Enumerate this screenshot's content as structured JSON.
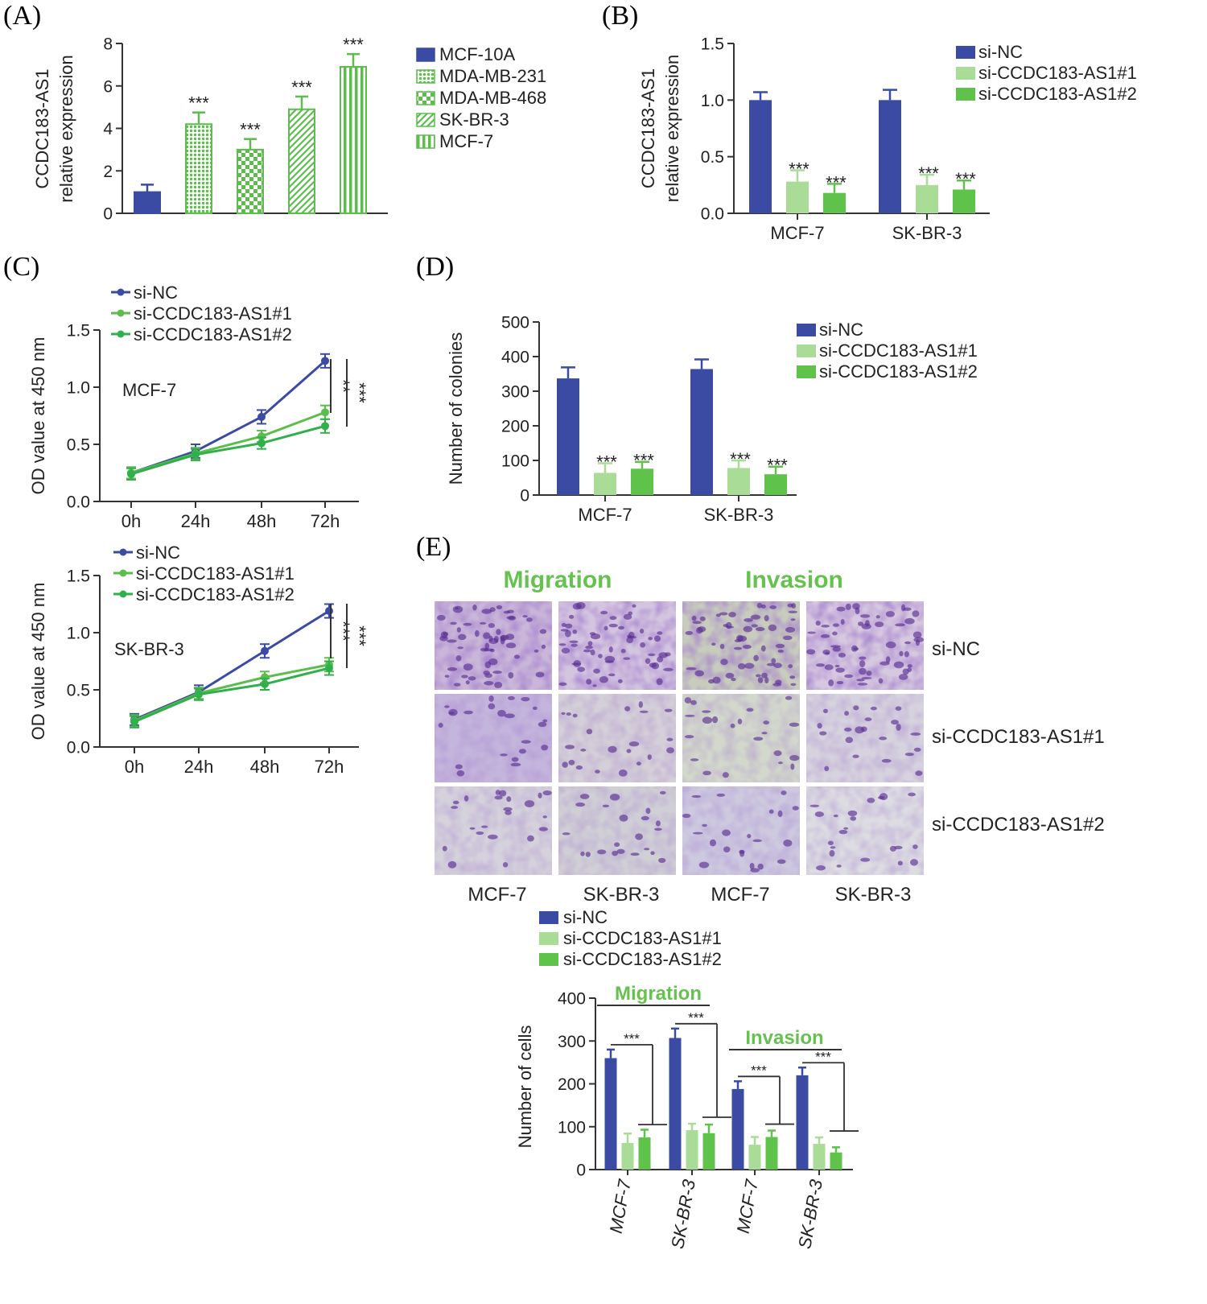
{
  "colors": {
    "blue": "#3b4ba3",
    "green": "#5bbd4a",
    "lightgreen": "#a9dc96",
    "midgreen": "#5fc24b",
    "darkgreen": "#30b04a",
    "title_green": "#65c24f"
  },
  "panel_labels": [
    "(A)",
    "(B)",
    "(C)",
    "(D)",
    "(E)"
  ],
  "chart_data": [
    {
      "id": "A",
      "type": "bar",
      "ylabel": [
        "CCDC183-AS1",
        "relative expression"
      ],
      "ylim": [
        0,
        8
      ],
      "yticks": [
        "0",
        "2",
        "4",
        "6",
        "8"
      ],
      "categories": [
        "MCF-10A",
        "MDA-MB-231",
        "MDA-MB-468",
        "SK-BR-3",
        "MCF-7"
      ],
      "values": [
        1.0,
        4.2,
        3.0,
        4.9,
        6.9
      ],
      "errors": [
        0.35,
        0.55,
        0.5,
        0.6,
        0.6
      ],
      "significance": [
        "",
        "***",
        "***",
        "***",
        "***"
      ],
      "legend": [
        "MCF-10A",
        "MDA-MB-231",
        "MDA-MB-468",
        "SK-BR-3",
        "MCF-7"
      ],
      "legend_position": "right"
    },
    {
      "id": "B",
      "type": "bar",
      "ylabel": [
        "CCDC183-AS1",
        "relative expression"
      ],
      "ylim": [
        0,
        1.5
      ],
      "yticks": [
        "0.0",
        "0.5",
        "1.0",
        "1.5"
      ],
      "categories": [
        "MCF-7",
        "SK-BR-3"
      ],
      "series": [
        {
          "name": "si-NC",
          "values": [
            1.0,
            1.0
          ],
          "errors": [
            0.07,
            0.09
          ],
          "significance": [
            "",
            ""
          ]
        },
        {
          "name": "si-CCDC183-AS1#1",
          "values": [
            0.28,
            0.25
          ],
          "errors": [
            0.1,
            0.09
          ],
          "significance": [
            "***",
            "***"
          ]
        },
        {
          "name": "si-CCDC183-AS1#2",
          "values": [
            0.18,
            0.21
          ],
          "errors": [
            0.08,
            0.08
          ],
          "significance": [
            "***",
            "***"
          ]
        }
      ],
      "legend_position": "top-right"
    },
    {
      "id": "C1",
      "type": "line",
      "annotation": "MCF-7",
      "ylabel": "OD value at 450 nm",
      "ylim": [
        0,
        1.5
      ],
      "yticks": [
        "0.0",
        "0.5",
        "1.0",
        "1.5"
      ],
      "x": [
        "0h",
        "24h",
        "48h",
        "72h"
      ],
      "series": [
        {
          "name": "si-NC",
          "values": [
            0.25,
            0.44,
            0.74,
            1.23
          ],
          "errors": [
            0.05,
            0.06,
            0.06,
            0.06
          ]
        },
        {
          "name": "si-CCDC183-AS1#1",
          "values": [
            0.25,
            0.42,
            0.57,
            0.78
          ],
          "errors": [
            0.05,
            0.05,
            0.05,
            0.06
          ]
        },
        {
          "name": "si-CCDC183-AS1#2",
          "values": [
            0.24,
            0.41,
            0.51,
            0.66
          ],
          "errors": [
            0.05,
            0.05,
            0.05,
            0.06
          ]
        }
      ],
      "significance": [
        "**",
        "***"
      ],
      "legend_position": "top-left"
    },
    {
      "id": "C2",
      "type": "line",
      "annotation": "SK-BR-3",
      "ylabel": "OD value at 450 nm",
      "ylim": [
        0,
        1.5
      ],
      "yticks": [
        "0.0",
        "0.5",
        "1.0",
        "1.5"
      ],
      "x": [
        "0h",
        "24h",
        "48h",
        "72h"
      ],
      "series": [
        {
          "name": "si-NC",
          "values": [
            0.24,
            0.48,
            0.84,
            1.19
          ],
          "errors": [
            0.05,
            0.06,
            0.06,
            0.06
          ]
        },
        {
          "name": "si-CCDC183-AS1#1",
          "values": [
            0.23,
            0.47,
            0.61,
            0.72
          ],
          "errors": [
            0.05,
            0.05,
            0.05,
            0.06
          ]
        },
        {
          "name": "si-CCDC183-AS1#2",
          "values": [
            0.22,
            0.46,
            0.55,
            0.69
          ],
          "errors": [
            0.05,
            0.05,
            0.05,
            0.06
          ]
        }
      ],
      "significance": [
        "***",
        "***"
      ],
      "legend_position": "top-left"
    },
    {
      "id": "D",
      "type": "bar",
      "ylabel": "Number of colonies",
      "ylim": [
        0,
        500
      ],
      "yticks": [
        "0",
        "100",
        "200",
        "300",
        "400",
        "500"
      ],
      "categories": [
        "MCF-7",
        "SK-BR-3"
      ],
      "series": [
        {
          "name": "si-NC",
          "values": [
            337,
            364
          ],
          "errors": [
            32,
            28
          ],
          "significance": [
            "",
            ""
          ]
        },
        {
          "name": "si-CCDC183-AS1#1",
          "values": [
            64,
            78
          ],
          "errors": [
            28,
            22
          ],
          "significance": [
            "***",
            "***"
          ]
        },
        {
          "name": "si-CCDC183-AS1#2",
          "values": [
            76,
            60
          ],
          "errors": [
            20,
            22
          ],
          "significance": [
            "***",
            "***"
          ]
        }
      ],
      "legend_position": "top-right"
    },
    {
      "id": "E",
      "type": "bar",
      "ylabel": "Number of cells",
      "ylim": [
        0,
        400
      ],
      "yticks": [
        "0",
        "100",
        "200",
        "300",
        "400"
      ],
      "categories": [
        "MCF-7",
        "SK-BR-3",
        "MCF-7",
        "SK-BR-3"
      ],
      "groups": [
        "Migration",
        "Invasion"
      ],
      "series": [
        {
          "name": "si-NC",
          "values": [
            260,
            307,
            188,
            220
          ],
          "errors": [
            20,
            22,
            18,
            18
          ]
        },
        {
          "name": "si-CCDC183-AS1#1",
          "values": [
            62,
            92,
            58,
            60
          ],
          "errors": [
            22,
            15,
            18,
            15
          ]
        },
        {
          "name": "si-CCDC183-AS1#2",
          "values": [
            75,
            85,
            76,
            40
          ],
          "errors": [
            18,
            20,
            15,
            12
          ]
        }
      ],
      "significance": [
        "***",
        "***",
        "***",
        "***"
      ],
      "legend_position": "top"
    }
  ],
  "micrographs": {
    "col_titles": [
      "Migration",
      "Invasion"
    ],
    "row_labels": [
      "si-NC",
      "si-CCDC183-AS1#1",
      "si-CCDC183-AS1#2"
    ],
    "col_labels": [
      "MCF-7",
      "SK-BR-3",
      "MCF-7",
      "SK-BR-3"
    ],
    "legend": [
      "si-NC",
      "si-CCDC183-AS1#1",
      "si-CCDC183-AS1#2"
    ]
  }
}
